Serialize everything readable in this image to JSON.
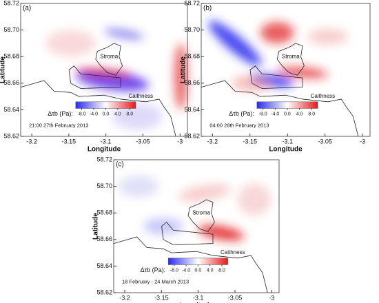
{
  "chart_data": [
    {
      "type": "heatmap",
      "title": "(a)",
      "xlabel": "Longitude",
      "ylabel": "Latitude",
      "xlim": [
        -3.215,
        -2.99
      ],
      "ylim": [
        58.62,
        58.72
      ],
      "xticks": [
        -3.2,
        -3.15,
        -3.1,
        -3.05,
        -3
      ],
      "yticks": [
        58.62,
        58.64,
        58.66,
        58.68,
        {
          "value": 58.7,
          "label": "58.70"
        },
        58.72
      ],
      "annotations": [
        "Stroma",
        "Caithness"
      ],
      "colorbar": {
        "label": "Δτb (Pa):",
        "lim": [
          -10,
          10
        ],
        "colors": [
          "#2a2af0",
          "#ffffff",
          "#e81818"
        ],
        "ticks": [
          {
            "value": -8,
            "label": "-8.0"
          },
          {
            "value": -4,
            "label": "-4.0"
          },
          {
            "value": 0,
            "label": "0.0"
          },
          {
            "value": 4,
            "label": "4.0"
          },
          {
            "value": 8,
            "label": "8.0"
          }
        ]
      },
      "caption": "21:00 27th February 2013"
    },
    {
      "type": "heatmap",
      "title": "(b)",
      "xlabel": "Longitude",
      "ylabel": "Latitude",
      "xlim": [
        -3.215,
        -2.99
      ],
      "ylim": [
        58.62,
        58.72
      ],
      "xticks": [
        -3.2,
        -3.15,
        -3.1,
        -3.05,
        -3
      ],
      "yticks": [
        58.62,
        58.64,
        58.66,
        58.68,
        {
          "value": 58.7,
          "label": "58.70"
        },
        58.72
      ],
      "annotations": [
        "Stroma",
        "Caithness"
      ],
      "colorbar": {
        "label": "Δτb (Pa):",
        "lim": [
          -10,
          10
        ],
        "colors": [
          "#2a2af0",
          "#ffffff",
          "#e81818"
        ],
        "ticks": [
          {
            "value": -8,
            "label": "-8.0"
          },
          {
            "value": -4,
            "label": "-4.0"
          },
          {
            "value": 0,
            "label": "0.0"
          },
          {
            "value": 4,
            "label": "4.0"
          },
          {
            "value": 8,
            "label": "8.0"
          }
        ]
      },
      "caption": "04:00 28th February 2013"
    },
    {
      "type": "heatmap",
      "title": "(c)",
      "xlabel": "Longitude",
      "ylabel": "Latitude",
      "xlim": [
        -3.215,
        -2.99
      ],
      "ylim": [
        58.62,
        58.72
      ],
      "xticks": [
        -3.2,
        -3.15,
        -3.1,
        -3.05,
        -3
      ],
      "yticks": [
        58.62,
        58.64,
        58.66,
        58.68,
        {
          "value": 58.7,
          "label": "58.70"
        },
        58.72
      ],
      "annotations": [
        "Stroma",
        "Caithness"
      ],
      "colorbar": {
        "label": "Δτb (Pa):",
        "lim": [
          -10,
          10
        ],
        "colors": [
          "#2a2af0",
          "#ffffff",
          "#e81818"
        ],
        "ticks": [
          {
            "value": -8,
            "label": "-8.0"
          },
          {
            "value": -4,
            "label": "-4.0"
          },
          {
            "value": 0,
            "label": "0.0"
          },
          {
            "value": 4,
            "label": "4.0"
          },
          {
            "value": 8,
            "label": "8.0"
          }
        ]
      },
      "caption": "18 February - 24 March 2013"
    }
  ]
}
